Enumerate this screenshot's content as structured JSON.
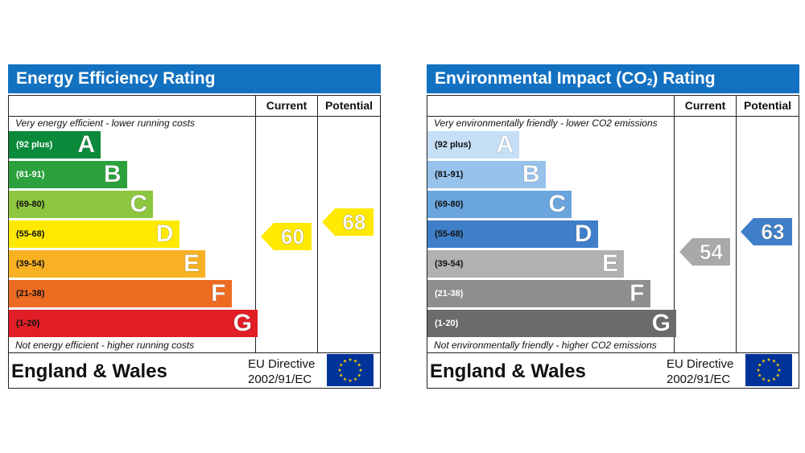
{
  "chart_data": [
    {
      "type": "bar",
      "title": "Energy Efficiency Rating",
      "columns": [
        "Current",
        "Potential"
      ],
      "top_caption": "Very energy efficient - lower running costs",
      "bottom_caption": "Not energy efficient - higher running costs",
      "bands": [
        {
          "letter": "A",
          "range": "(92 plus)",
          "color": "#0a8a3a",
          "text_color": "#ffffff"
        },
        {
          "letter": "B",
          "range": "(81-91)",
          "color": "#2aa13d",
          "text_color": "#ffffff"
        },
        {
          "letter": "C",
          "range": "(69-80)",
          "color": "#8dc63f",
          "text_color": "#111111"
        },
        {
          "letter": "D",
          "range": "(55-68)",
          "color": "#ffe900",
          "text_color": "#111111"
        },
        {
          "letter": "E",
          "range": "(39-54)",
          "color": "#f7b122",
          "text_color": "#111111"
        },
        {
          "letter": "F",
          "range": "(21-38)",
          "color": "#ee6b22",
          "text_color": "#111111"
        },
        {
          "letter": "G",
          "range": "(1-20)",
          "color": "#e11e26",
          "text_color": "#111111"
        }
      ],
      "current": {
        "value": 60,
        "band": "D",
        "color": "#ffe900"
      },
      "potential": {
        "value": 68,
        "band": "D",
        "color": "#ffe900"
      },
      "country": "England & Wales",
      "directive": [
        "EU Directive",
        "2002/91/EC"
      ]
    },
    {
      "type": "bar",
      "title": "Environmental Impact (CO2) Rating",
      "columns": [
        "Current",
        "Potential"
      ],
      "top_caption": "Very environmentally friendly - lower CO2 emissions",
      "bottom_caption": "Not environmentally friendly - higher CO2 emissions",
      "bands": [
        {
          "letter": "A",
          "range": "(92 plus)",
          "color": "#c5dff6",
          "text_color": "#111111"
        },
        {
          "letter": "B",
          "range": "(81-91)",
          "color": "#96c2eb",
          "text_color": "#111111"
        },
        {
          "letter": "C",
          "range": "(69-80)",
          "color": "#6aa5dd",
          "text_color": "#111111"
        },
        {
          "letter": "D",
          "range": "(55-68)",
          "color": "#3f7fc9",
          "text_color": "#111111"
        },
        {
          "letter": "E",
          "range": "(39-54)",
          "color": "#b1b1b1",
          "text_color": "#111111"
        },
        {
          "letter": "F",
          "range": "(21-38)",
          "color": "#8e8e8e",
          "text_color": "#ffffff"
        },
        {
          "letter": "G",
          "range": "(1-20)",
          "color": "#6b6b6b",
          "text_color": "#ffffff"
        }
      ],
      "current": {
        "value": 54,
        "band": "E",
        "color": "#a9a9a9"
      },
      "potential": {
        "value": 63,
        "band": "D",
        "color": "#3f7fc9"
      },
      "country": "England & Wales",
      "directive": [
        "EU Directive",
        "2002/91/EC"
      ]
    }
  ],
  "flag_colors": {
    "blue": "#003399",
    "star": "#ffcc00"
  }
}
